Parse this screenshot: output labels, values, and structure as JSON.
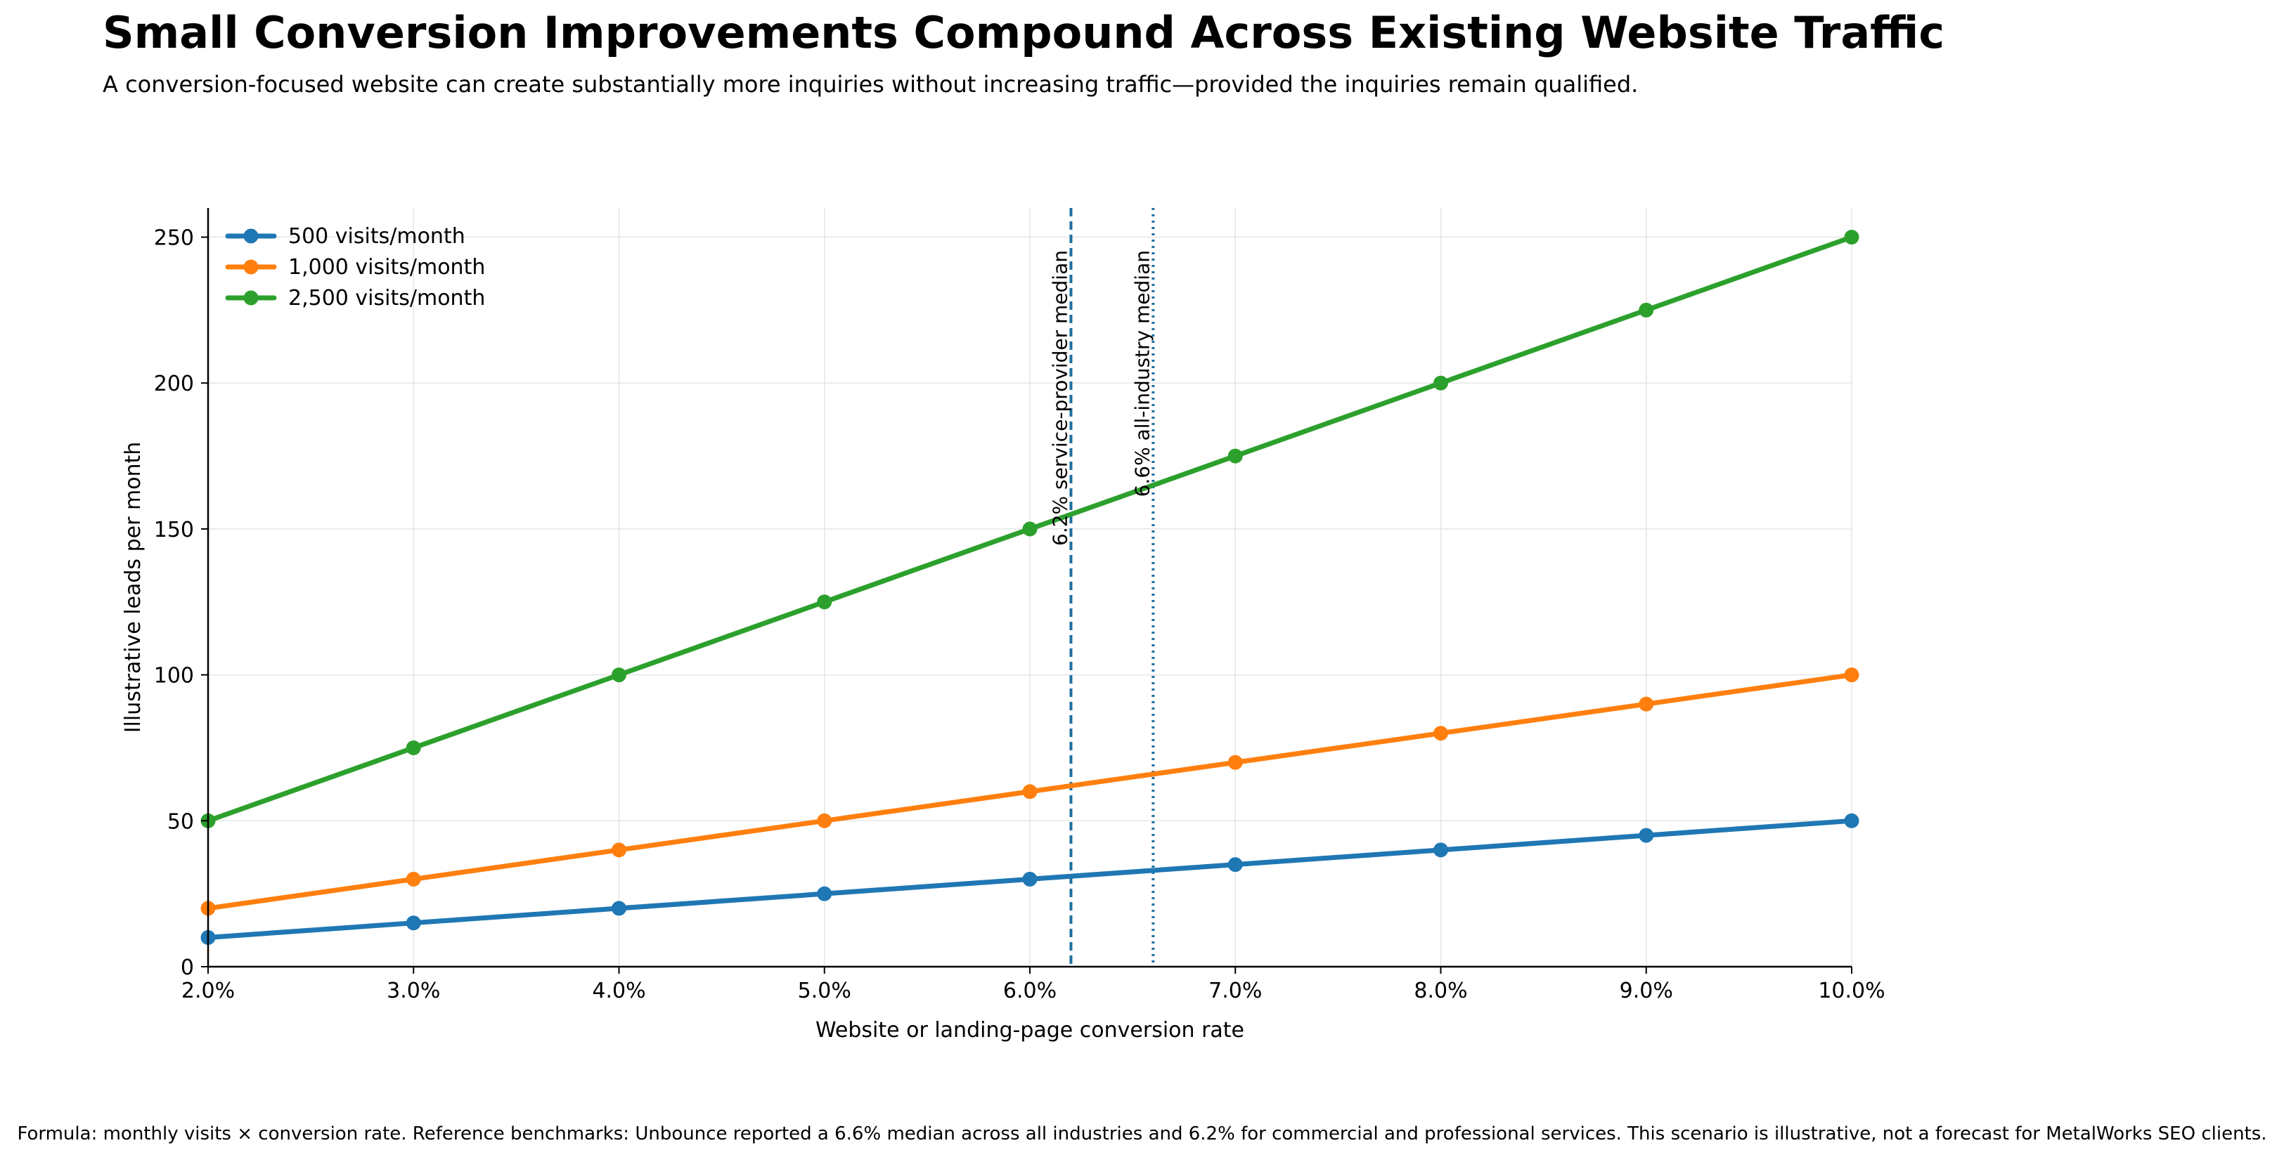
{
  "chart_data": {
    "type": "line",
    "title": "Small Conversion Improvements Compound Across Existing Website Traffic",
    "subtitle": "A conversion-focused website can create substantially more inquiries without increasing traffic—provided the inquiries remain qualified.",
    "xlabel": "Website or landing-page conversion rate",
    "ylabel": "Illustrative leads per month",
    "x": [
      2,
      3,
      4,
      5,
      6,
      7,
      8,
      9,
      10
    ],
    "x_tick_labels": [
      "2.0%",
      "3.0%",
      "4.0%",
      "5.0%",
      "6.0%",
      "7.0%",
      "8.0%",
      "9.0%",
      "10.0%"
    ],
    "y_ticks": [
      0,
      50,
      100,
      150,
      200,
      250
    ],
    "xlim": [
      2,
      10
    ],
    "ylim": [
      0,
      260
    ],
    "grid": true,
    "legend_position": "top-left",
    "series": [
      {
        "name": "500 visits/month",
        "color": "#1f77b4",
        "values": [
          10,
          15,
          20,
          25,
          30,
          35,
          40,
          45,
          50
        ]
      },
      {
        "name": "1,000 visits/month",
        "color": "#ff7f0e",
        "values": [
          20,
          30,
          40,
          50,
          60,
          70,
          80,
          90,
          100
        ]
      },
      {
        "name": "2,500 visits/month",
        "color": "#2ca02c",
        "values": [
          50,
          75,
          100,
          125,
          150,
          175,
          200,
          225,
          250
        ]
      }
    ],
    "reference_lines": [
      {
        "x": 6.2,
        "label": "6.2% service-provider median",
        "style": "dashed",
        "color": "#1f6f9f"
      },
      {
        "x": 6.6,
        "label": "6.6% all-industry median",
        "style": "dotted",
        "color": "#1f6f9f"
      }
    ],
    "footnote": "Formula: monthly visits × conversion rate. Reference benchmarks: Unbounce reported a 6.6% median across all industries and 6.2% for commercial and professional services. This scenario is illustrative, not a forecast for MetalWorks SEO clients."
  }
}
